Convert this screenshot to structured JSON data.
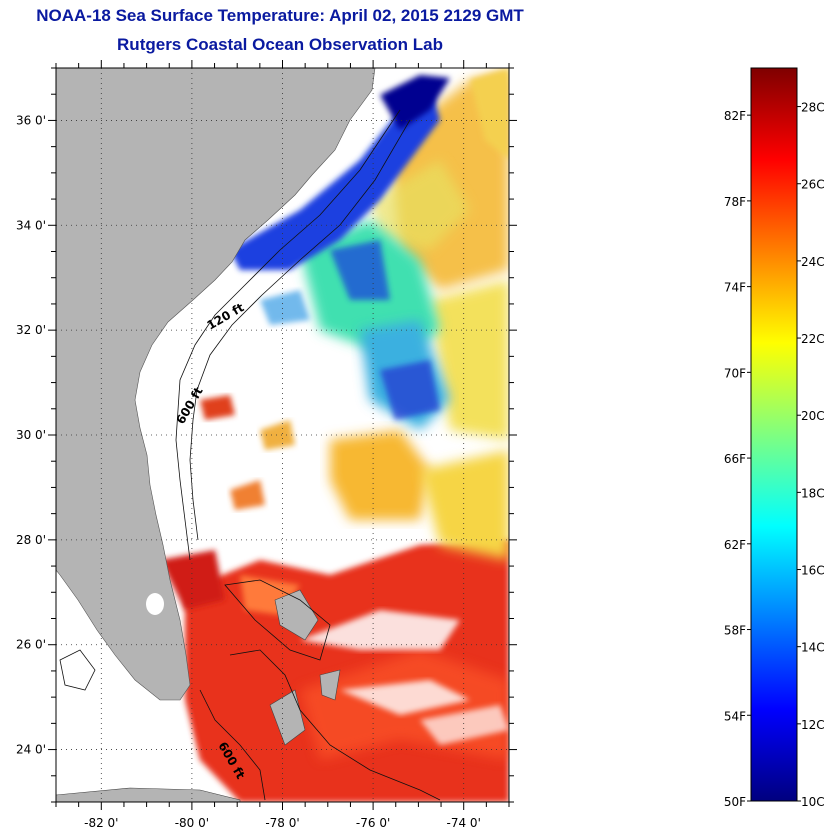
{
  "title": "NOAA-18 Sea Surface Temperature:  April 02, 2015 2129 GMT",
  "subtitle": "Rutgers Coastal Ocean Observation Lab",
  "map": {
    "lon_range": [
      -83,
      -73
    ],
    "lat_range": [
      23,
      37
    ],
    "lat_ticks": [
      {
        "value": 36,
        "label": "36 0'"
      },
      {
        "value": 34,
        "label": "34 0'"
      },
      {
        "value": 32,
        "label": "32 0'"
      },
      {
        "value": 30,
        "label": "30 0'"
      },
      {
        "value": 28,
        "label": "28 0'"
      },
      {
        "value": 26,
        "label": "26 0'"
      },
      {
        "value": 24,
        "label": "24 0'"
      }
    ],
    "lon_ticks": [
      {
        "value": -82,
        "label": "-82 0'"
      },
      {
        "value": -80,
        "label": "-80 0'"
      },
      {
        "value": -78,
        "label": "-78 0'"
      },
      {
        "value": -76,
        "label": "-76 0'"
      },
      {
        "value": -74,
        "label": "-74 0'"
      }
    ],
    "contour_labels": [
      "120 ft",
      "600 ft",
      "600 ft"
    ],
    "land_color": "#b4b4b4",
    "grid": "dotted"
  },
  "colorbar": {
    "celsius_labels": [
      "28C",
      "26C",
      "24C",
      "22C",
      "20C",
      "18C",
      "16C",
      "14C",
      "12C",
      "10C"
    ],
    "fahrenheit_labels": [
      "82F",
      "78F",
      "74F",
      "70F",
      "66F",
      "62F",
      "58F",
      "54F",
      "50F"
    ],
    "colormap": "jet",
    "range_c": [
      10,
      29
    ]
  }
}
